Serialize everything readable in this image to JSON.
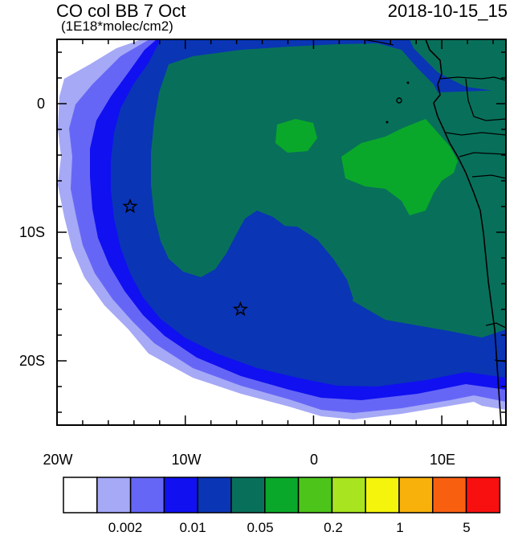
{
  "title": {
    "left": "CO col BB 7 Oct",
    "units": "(1E18*molec/cm2)",
    "right": "2018-10-15_15"
  },
  "map": {
    "lon_range": [
      -20,
      15
    ],
    "lat_range": [
      -25,
      5
    ],
    "y_ticks": [
      {
        "lat": 0,
        "label": "0"
      },
      {
        "lat": -10,
        "label": "10S"
      },
      {
        "lat": -20,
        "label": "20S"
      }
    ],
    "x_ticks": [
      {
        "lon": -20,
        "label": "20W"
      },
      {
        "lon": -10,
        "label": "10W"
      },
      {
        "lon": 0,
        "label": "0"
      },
      {
        "lon": 10,
        "label": "10E"
      }
    ],
    "markers": [
      {
        "name": "star-marker-1",
        "lon": -14.3,
        "lat": -8.0
      },
      {
        "name": "star-marker-2",
        "lon": -5.7,
        "lat": -16.0
      }
    ]
  },
  "colorbar": {
    "colors": [
      "#ffffff",
      "#a6a9f6",
      "#6666f6",
      "#1010f0",
      "#0a35b5",
      "#08705a",
      "#0aa82a",
      "#4cc41a",
      "#a8e420",
      "#f4f40c",
      "#f8b00a",
      "#f86010",
      "#f81010"
    ],
    "labels": [
      "0.002",
      "0.01",
      "0.05",
      "0.2",
      "1",
      "5"
    ]
  }
}
